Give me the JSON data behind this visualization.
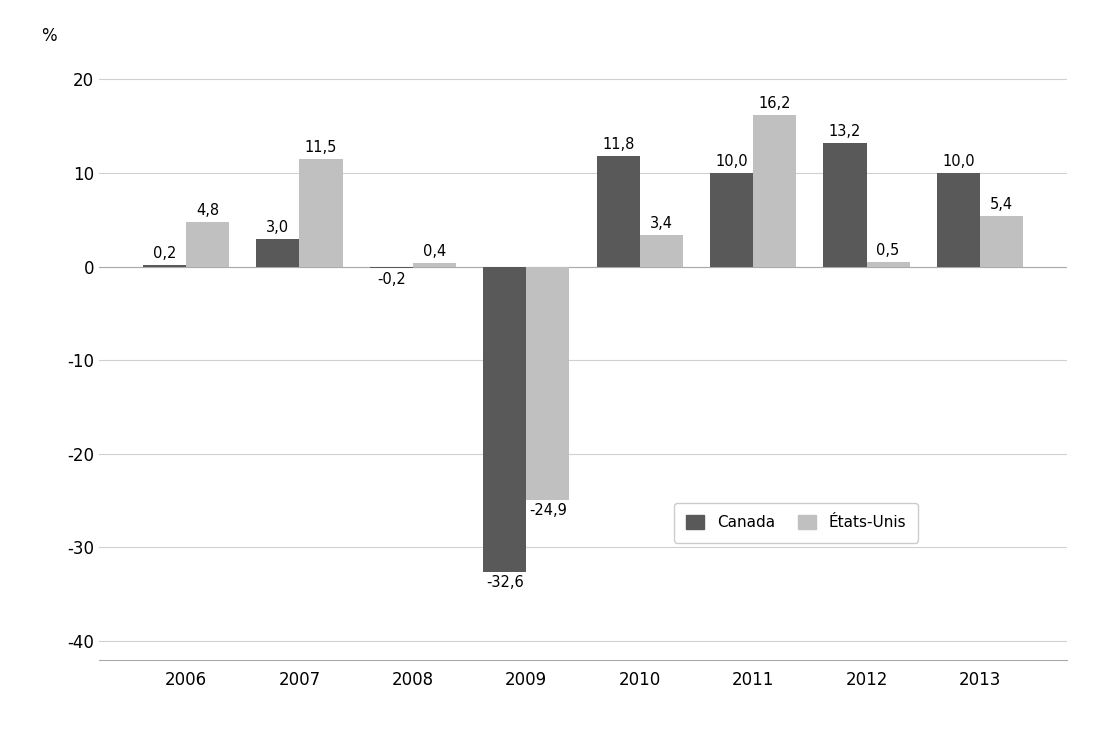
{
  "years": [
    "2006",
    "2007",
    "2008",
    "2009",
    "2010",
    "2011",
    "2012",
    "2013"
  ],
  "canada": [
    0.2,
    3.0,
    -0.2,
    -32.6,
    11.8,
    10.0,
    13.2,
    10.0
  ],
  "etats_unis": [
    4.8,
    11.5,
    0.4,
    -24.9,
    3.4,
    16.2,
    0.5,
    5.4
  ],
  "canada_color": "#595959",
  "etats_unis_color": "#c0c0c0",
  "background_color": "#ffffff",
  "ylabel": "%",
  "ylim": [
    -42,
    23
  ],
  "yticks": [
    -40,
    -30,
    -20,
    -10,
    0,
    10,
    20
  ],
  "legend_canada": "Canada",
  "legend_etats_unis": "États-Unis",
  "bar_width": 0.38,
  "label_fontsize": 10.5,
  "tick_fontsize": 12,
  "legend_fontsize": 11,
  "grid_color": "#d0d0d0"
}
